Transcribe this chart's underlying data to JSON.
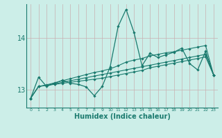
{
  "xlabel": "Humidex (Indice chaleur)",
  "bg_color": "#cceee8",
  "line_color": "#1a7a6e",
  "grid_h_color": "#c8b0b0",
  "grid_v_color": "#c8b0b0",
  "xlim": [
    -0.5,
    23.5
  ],
  "ylim": [
    12.65,
    14.65
  ],
  "yticks": [
    13,
    14
  ],
  "xticks": [
    0,
    1,
    2,
    3,
    4,
    5,
    6,
    7,
    8,
    9,
    10,
    11,
    12,
    13,
    14,
    15,
    16,
    17,
    18,
    19,
    20,
    21,
    22,
    23
  ],
  "x": [
    0,
    1,
    2,
    3,
    4,
    5,
    6,
    7,
    8,
    9,
    10,
    11,
    12,
    13,
    14,
    15,
    16,
    17,
    18,
    19,
    20,
    21,
    22,
    23
  ],
  "line1": [
    12.83,
    13.24,
    13.06,
    13.12,
    13.18,
    13.12,
    13.1,
    13.05,
    12.88,
    13.06,
    13.44,
    14.22,
    14.55,
    14.1,
    13.46,
    13.7,
    13.62,
    13.67,
    13.72,
    13.8,
    13.5,
    13.38,
    13.74,
    13.28
  ],
  "line2": [
    12.83,
    13.06,
    13.08,
    13.1,
    13.12,
    13.14,
    13.16,
    13.18,
    13.2,
    13.22,
    13.25,
    13.28,
    13.31,
    13.34,
    13.37,
    13.42,
    13.45,
    13.48,
    13.51,
    13.54,
    13.57,
    13.6,
    13.63,
    13.28
  ],
  "line3": [
    12.83,
    13.06,
    13.09,
    13.13,
    13.17,
    13.21,
    13.25,
    13.29,
    13.33,
    13.36,
    13.4,
    13.46,
    13.53,
    13.57,
    13.6,
    13.65,
    13.68,
    13.71,
    13.73,
    13.76,
    13.79,
    13.82,
    13.85,
    13.28
  ],
  "line4": [
    12.83,
    13.06,
    13.08,
    13.11,
    13.14,
    13.17,
    13.2,
    13.23,
    13.26,
    13.29,
    13.32,
    13.35,
    13.38,
    13.41,
    13.44,
    13.47,
    13.5,
    13.53,
    13.56,
    13.59,
    13.62,
    13.65,
    13.68,
    13.28
  ]
}
